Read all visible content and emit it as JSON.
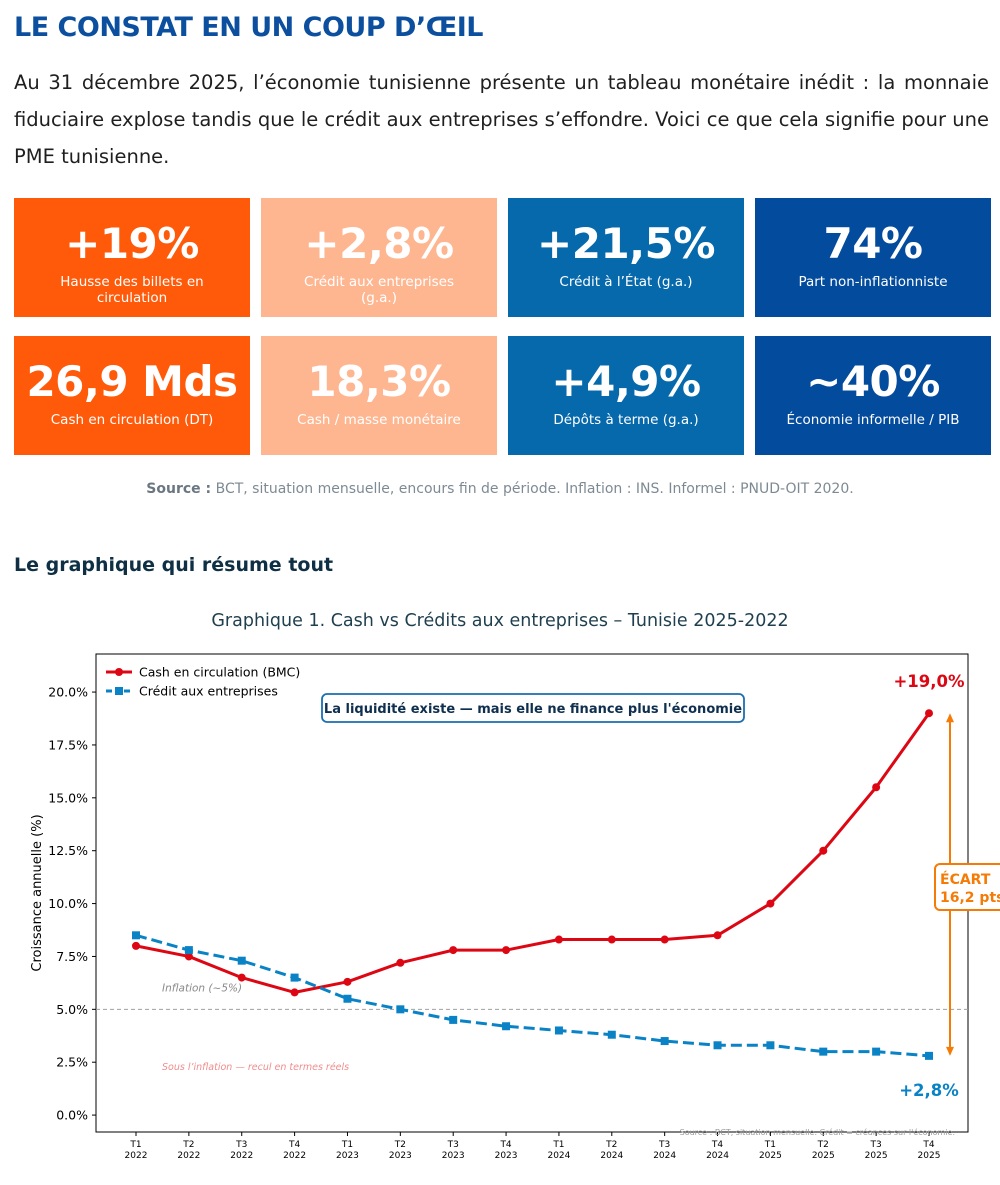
{
  "page": {
    "title": "LE CONSTAT EN UN COUP D’ŒIL",
    "intro": "Au 31 décembre 2025, l’économie tunisienne présente un tableau monétaire inédit : la monnaie fiduciaire explose tandis que le crédit aux entreprises s’effondre. Voici ce que cela signifie pour une PME tunisienne.",
    "source_label": "Source :",
    "source_text": " BCT, situation mensuelle, encours fin de période. Inflation : INS. Informel : PNUD-OIT 2020.",
    "subtitle": "Le graphique qui résume tout",
    "chart_title": "Graphique 1. Cash vs Crédits aux entreprises – Tunisie 2025-2022"
  },
  "kpis": [
    {
      "value": "+19%",
      "label": "Hausse des billets en circulation",
      "color": "#ff5a09"
    },
    {
      "value": "+2,8%",
      "label": "Crédit aux entreprises (g.a.)",
      "color": "#feb691"
    },
    {
      "value": "+21,5%",
      "label": "Crédit à l’État (g.a.)",
      "color": "#0569ac"
    },
    {
      "value": "74%",
      "label": "Part non-inflationniste",
      "color": "#034b9c"
    },
    {
      "value": "26,9 Mds",
      "label": "Cash en circulation (DT)",
      "color": "#ff5a09"
    },
    {
      "value": "18,3%",
      "label": "Cash / masse monétaire",
      "color": "#feb691"
    },
    {
      "value": "+4,9%",
      "label": "Dépôts à terme (g.a.)",
      "color": "#0569ac"
    },
    {
      "value": "~40%",
      "label": "Économie informelle / PIB",
      "color": "#034b9c"
    }
  ],
  "chart_data": {
    "type": "line",
    "ylabel": "Croissance annuelle (%)",
    "ylim": [
      -0.8,
      21.8
    ],
    "yticks": [
      "0.0%",
      "2.5%",
      "5.0%",
      "7.5%",
      "10.0%",
      "12.5%",
      "15.0%",
      "17.5%",
      "20.0%"
    ],
    "ytick_values": [
      0,
      2.5,
      5,
      7.5,
      10,
      12.5,
      15,
      17.5,
      20
    ],
    "categories": [
      [
        "T1",
        "2022"
      ],
      [
        "T2",
        "2022"
      ],
      [
        "T3",
        "2022"
      ],
      [
        "T4",
        "2022"
      ],
      [
        "T1",
        "2023"
      ],
      [
        "T2",
        "2023"
      ],
      [
        "T3",
        "2023"
      ],
      [
        "T4",
        "2023"
      ],
      [
        "T1",
        "2024"
      ],
      [
        "T2",
        "2024"
      ],
      [
        "T3",
        "2024"
      ],
      [
        "T4",
        "2024"
      ],
      [
        "T1",
        "2025"
      ],
      [
        "T2",
        "2025"
      ],
      [
        "T3",
        "2025"
      ],
      [
        "T4",
        "2025"
      ]
    ],
    "series": [
      {
        "name": "Cash en circulation (BMC)",
        "color": "#dd0714",
        "style": "solid",
        "marker": "circle",
        "values": [
          8.0,
          7.5,
          6.5,
          5.8,
          6.3,
          7.2,
          7.8,
          7.8,
          8.3,
          8.3,
          8.3,
          8.5,
          10.0,
          12.5,
          15.5,
          19.0
        ]
      },
      {
        "name": "Crédit aux entreprises",
        "color": "#0a82c6",
        "style": "dashed",
        "marker": "square",
        "values": [
          8.5,
          7.8,
          7.3,
          6.5,
          5.5,
          5.0,
          4.5,
          4.2,
          4.0,
          3.8,
          3.5,
          3.3,
          3.3,
          3.0,
          3.0,
          2.8
        ]
      }
    ],
    "inflation_line": {
      "value": 5.0,
      "label": "Inflation (~5%)",
      "color": "#a0a0a0"
    },
    "below_inflation_note": {
      "text": "Sous l’inflation — recul en termes réels",
      "color": "#f08c8c"
    },
    "callout": {
      "text": "La liquidité existe — mais elle ne finance plus l'économie",
      "color": "#1a6fb0"
    },
    "end_label_cash": {
      "text": "+19,0%",
      "color": "#dd0714"
    },
    "end_label_credit": {
      "text": "+2,8%",
      "color": "#0a82c6"
    },
    "gap": {
      "line1": "ÉCART",
      "line2": "16,2 pts",
      "color": "#f57b06",
      "from": 2.8,
      "to": 19.0
    },
    "source_note": "Source : BCT, situation mensuelle. Crédit = créances sur l'économie.",
    "legend_position": "top-left",
    "grid": false
  }
}
